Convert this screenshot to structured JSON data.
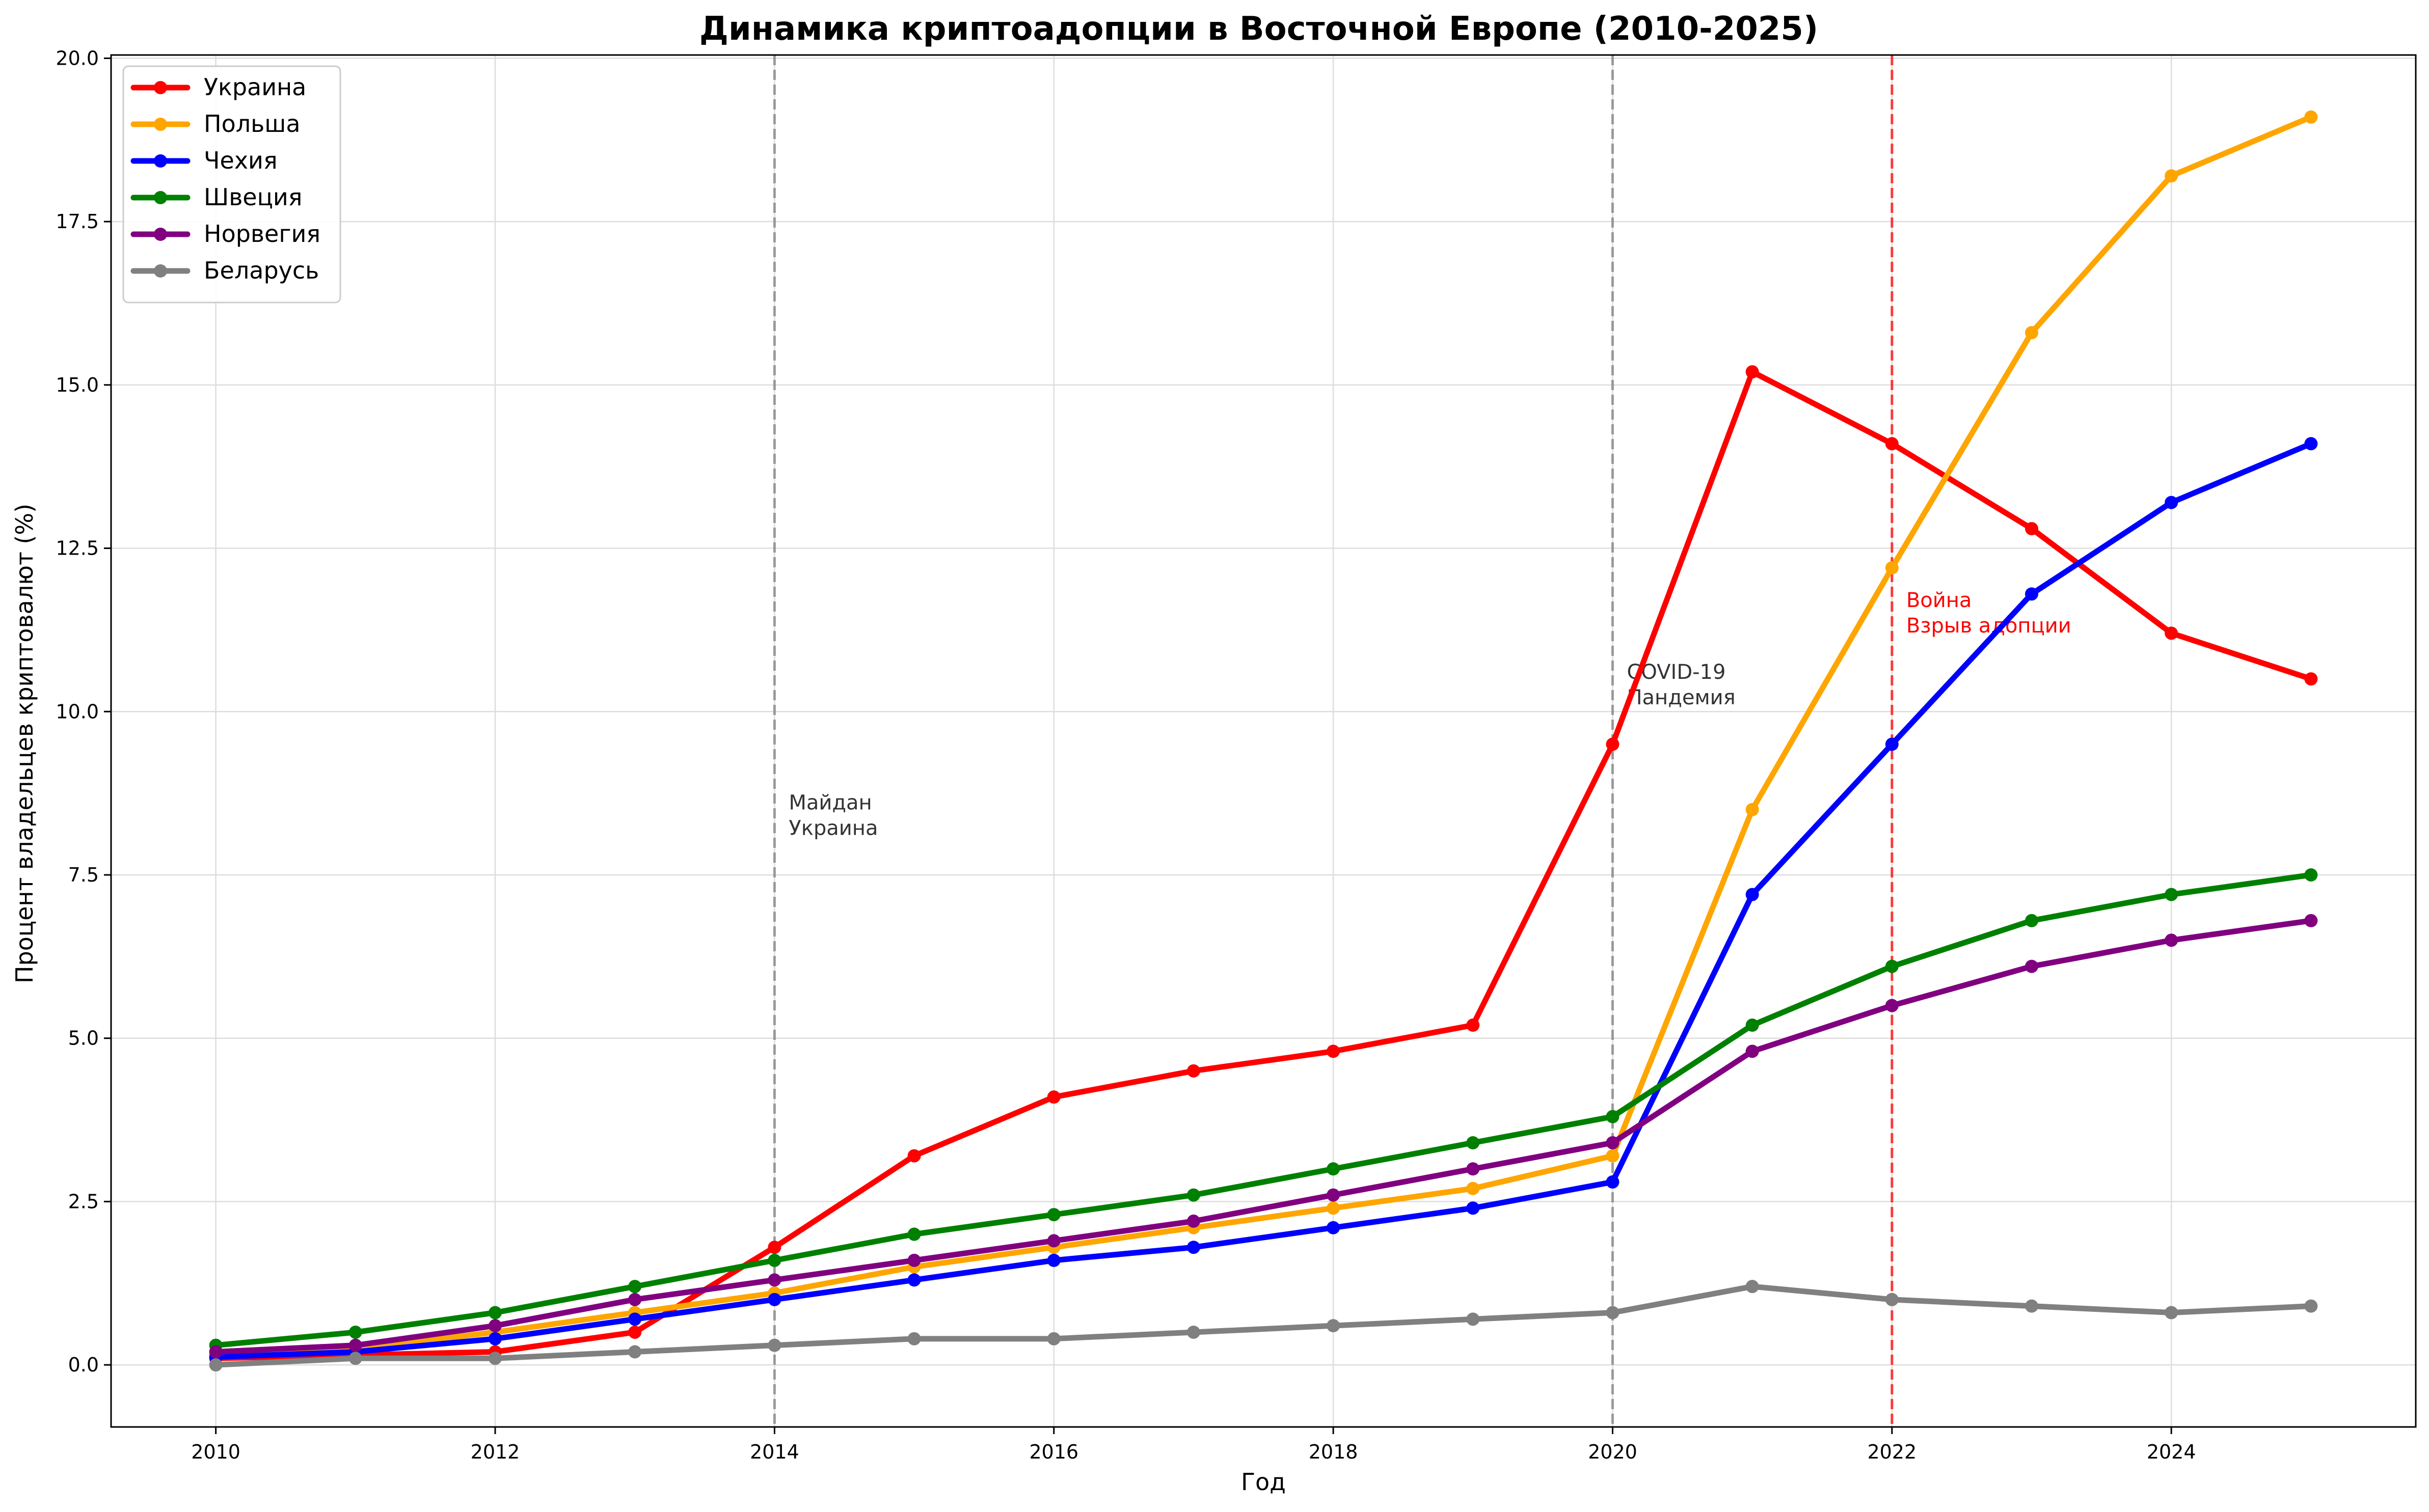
{
  "chart_data": {
    "type": "line",
    "title": "Динамика криптоадопции в Восточной Европе (2010-2025)",
    "xlabel": "Год",
    "ylabel": "Процент владельцев криптовалют (%)",
    "xlim": [
      2009.25,
      2025.75
    ],
    "ylim": [
      -0.95,
      20.05
    ],
    "xticks": [
      2010,
      2012,
      2014,
      2016,
      2018,
      2020,
      2022,
      2024
    ],
    "yticks": [
      0.0,
      2.5,
      5.0,
      7.5,
      10.0,
      12.5,
      15.0,
      17.5,
      20.0
    ],
    "yticks_labels": [
      "0.0",
      "2.5",
      "5.0",
      "7.5",
      "10.0",
      "12.5",
      "15.0",
      "17.5",
      "20.0"
    ],
    "grid": true,
    "legend_position": "top-left",
    "x": [
      2010,
      2011,
      2012,
      2013,
      2014,
      2015,
      2016,
      2017,
      2018,
      2019,
      2020,
      2021,
      2022,
      2023,
      2024,
      2025
    ],
    "series": [
      {
        "name": "Украина",
        "color": "#ff0000",
        "values": [
          0.1,
          0.15,
          0.2,
          0.5,
          1.8,
          3.2,
          4.1,
          4.5,
          4.8,
          5.2,
          9.5,
          15.2,
          14.1,
          12.8,
          11.2,
          10.5
        ]
      },
      {
        "name": "Польша",
        "color": "#ffa500",
        "values": [
          0.15,
          0.25,
          0.5,
          0.8,
          1.1,
          1.5,
          1.8,
          2.1,
          2.4,
          2.7,
          3.2,
          8.5,
          12.2,
          15.8,
          18.2,
          19.1
        ]
      },
      {
        "name": "Чехия",
        "color": "#0000ff",
        "values": [
          0.12,
          0.2,
          0.4,
          0.7,
          1.0,
          1.3,
          1.6,
          1.8,
          2.1,
          2.4,
          2.8,
          7.2,
          9.5,
          11.8,
          13.2,
          14.1
        ]
      },
      {
        "name": "Швеция",
        "color": "#008000",
        "values": [
          0.3,
          0.5,
          0.8,
          1.2,
          1.6,
          2.0,
          2.3,
          2.6,
          3.0,
          3.4,
          3.8,
          5.2,
          6.1,
          6.8,
          7.2,
          7.5
        ]
      },
      {
        "name": "Норвегия",
        "color": "#800080",
        "values": [
          0.2,
          0.3,
          0.6,
          1.0,
          1.3,
          1.6,
          1.9,
          2.2,
          2.6,
          3.0,
          3.4,
          4.8,
          5.5,
          6.1,
          6.5,
          6.8
        ]
      },
      {
        "name": "Беларусь",
        "color": "#808080",
        "values": [
          0.0,
          0.1,
          0.1,
          0.2,
          0.3,
          0.4,
          0.4,
          0.5,
          0.6,
          0.7,
          0.8,
          1.2,
          1.0,
          0.9,
          0.8,
          0.9
        ]
      }
    ],
    "vlines": [
      {
        "x": 2014,
        "color": "#808080",
        "style": "dashed",
        "label_lines": [
          "Майдан",
          "Украина"
        ],
        "label_color": "#333333",
        "label_y": 8.5
      },
      {
        "x": 2020,
        "color": "#808080",
        "style": "dashed",
        "label_lines": [
          "COVID-19",
          "Пандемия"
        ],
        "label_color": "#333333",
        "label_y": 10.5
      },
      {
        "x": 2022,
        "color": "#ff0000",
        "style": "dashed",
        "label_lines": [
          "Война",
          "Взрыв адопции"
        ],
        "label_color": "#ff0000",
        "label_y": 11.6
      }
    ]
  }
}
